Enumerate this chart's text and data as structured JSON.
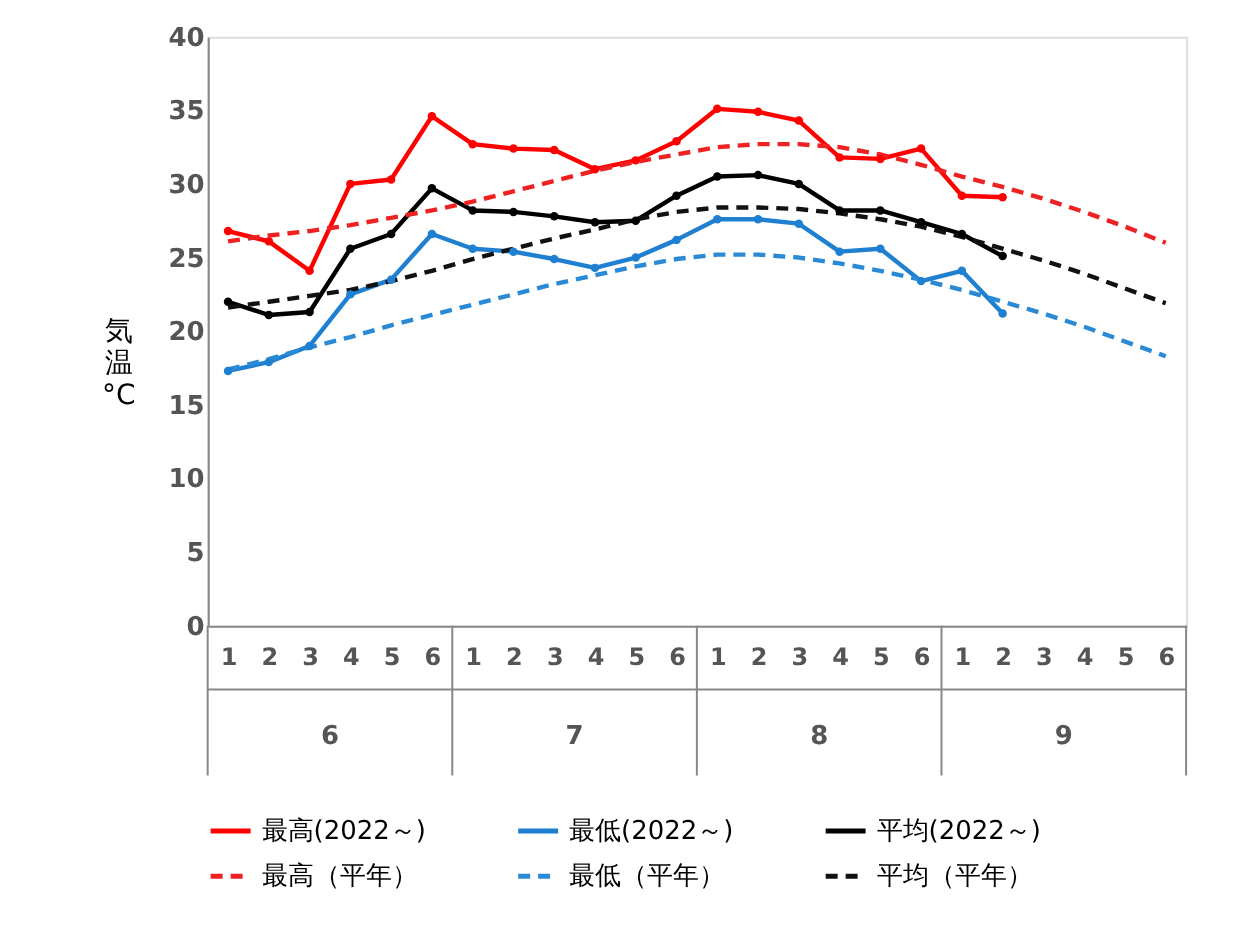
{
  "chart_data": {
    "type": "line",
    "ylabel": "気温°C",
    "categories": [
      "1",
      "2",
      "3",
      "4",
      "5",
      "6",
      "1",
      "2",
      "3",
      "4",
      "5",
      "6",
      "1",
      "2",
      "3",
      "4",
      "5",
      "6",
      "1",
      "2",
      "3",
      "4",
      "5",
      "6"
    ],
    "annotations": [
      "6",
      "7",
      "8",
      "9"
    ],
    "ylim": [
      0,
      40
    ],
    "yticks": [
      0,
      5,
      10,
      15,
      20,
      25,
      30,
      35,
      40
    ],
    "grid": false,
    "legend": "bottom",
    "series": [
      {
        "name": "最高(2022～)",
        "color": "#ff0000",
        "line_style": "solid",
        "marker": "circle",
        "values": [
          26.8,
          26.1,
          24.1,
          30.0,
          30.3,
          34.6,
          32.7,
          32.4,
          32.3,
          31.0,
          31.6,
          32.9,
          35.1,
          34.9,
          34.3,
          31.8,
          31.7,
          32.4,
          29.2,
          29.1,
          null,
          null,
          null,
          null
        ]
      },
      {
        "name": "最低(2022～)",
        "color": "#1f7fd0",
        "line_style": "solid",
        "marker": "circle",
        "values": [
          17.3,
          17.9,
          19.0,
          22.5,
          23.5,
          26.6,
          25.6,
          25.4,
          24.9,
          24.3,
          25.0,
          26.2,
          27.6,
          27.6,
          27.3,
          25.4,
          25.6,
          23.4,
          24.1,
          21.2,
          null,
          null,
          null,
          null
        ]
      },
      {
        "name": "平均(2022～)",
        "color": "#000000",
        "line_style": "solid",
        "marker": "circle",
        "values": [
          22.0,
          21.1,
          21.3,
          25.6,
          26.6,
          29.7,
          28.2,
          28.1,
          27.8,
          27.4,
          27.5,
          29.2,
          30.5,
          30.6,
          30.0,
          28.2,
          28.2,
          27.4,
          26.6,
          25.1,
          null,
          null,
          null,
          null
        ]
      },
      {
        "name": "最高（平年）",
        "color": "#ee2222",
        "line_style": "dashed",
        "marker": "none",
        "values": [
          26.1,
          26.5,
          26.8,
          27.2,
          27.7,
          28.2,
          28.8,
          29.5,
          30.2,
          30.9,
          31.5,
          32.0,
          32.5,
          32.7,
          32.7,
          32.5,
          32.0,
          31.3,
          30.5,
          29.8,
          29.0,
          28.1,
          27.1,
          26.0
        ]
      },
      {
        "name": "最低（平年）",
        "color": "#2a8ad6",
        "line_style": "dashed",
        "marker": "none",
        "values": [
          17.4,
          18.1,
          18.9,
          19.6,
          20.4,
          21.1,
          21.8,
          22.5,
          23.2,
          23.8,
          24.4,
          24.9,
          25.2,
          25.2,
          25.0,
          24.6,
          24.1,
          23.5,
          22.8,
          22.0,
          21.2,
          20.3,
          19.3,
          18.3
        ]
      },
      {
        "name": "平均（平年）",
        "color": "#111111",
        "line_style": "dashed",
        "marker": "none",
        "values": [
          21.6,
          22.0,
          22.4,
          22.8,
          23.4,
          24.1,
          24.9,
          25.6,
          26.3,
          26.9,
          27.6,
          28.1,
          28.4,
          28.4,
          28.3,
          28.0,
          27.6,
          27.1,
          26.4,
          25.6,
          24.8,
          23.9,
          22.9,
          21.9
        ]
      }
    ]
  }
}
